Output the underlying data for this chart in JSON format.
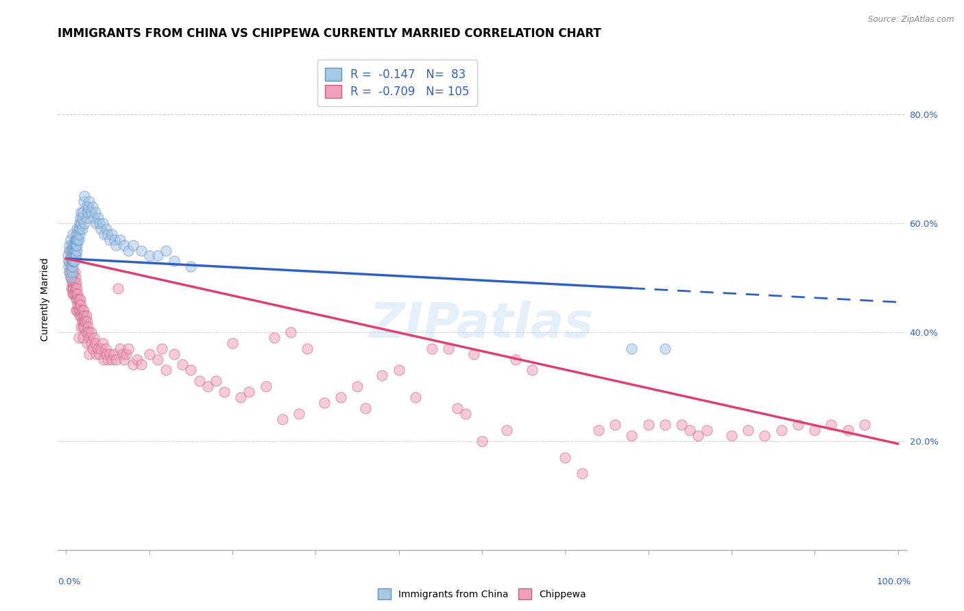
{
  "title": "IMMIGRANTS FROM CHINA VS CHIPPEWA CURRENTLY MARRIED CORRELATION CHART",
  "source": "Source: ZipAtlas.com",
  "ylabel": "Currently Married",
  "y_axis_ticks_right": [
    "80.0%",
    "60.0%",
    "40.0%",
    "20.0%"
  ],
  "y_axis_ticks_right_vals": [
    0.8,
    0.6,
    0.4,
    0.2
  ],
  "color_blue": "#A8C8E8",
  "color_pink": "#F0A0B8",
  "color_blue_line": "#3060C0",
  "color_pink_line": "#E04070",
  "color_blue_dark": "#6090C0",
  "color_pink_dark": "#C06080",
  "watermark": "ZIPatlas",
  "blue_scatter": [
    [
      0.002,
      0.54
    ],
    [
      0.003,
      0.52
    ],
    [
      0.003,
      0.53
    ],
    [
      0.004,
      0.56
    ],
    [
      0.004,
      0.51
    ],
    [
      0.005,
      0.55
    ],
    [
      0.005,
      0.5
    ],
    [
      0.005,
      0.57
    ],
    [
      0.006,
      0.54
    ],
    [
      0.006,
      0.53
    ],
    [
      0.006,
      0.52
    ],
    [
      0.007,
      0.55
    ],
    [
      0.007,
      0.53
    ],
    [
      0.007,
      0.51
    ],
    [
      0.007,
      0.56
    ],
    [
      0.008,
      0.54
    ],
    [
      0.008,
      0.52
    ],
    [
      0.008,
      0.58
    ],
    [
      0.008,
      0.53
    ],
    [
      0.009,
      0.55
    ],
    [
      0.009,
      0.53
    ],
    [
      0.009,
      0.56
    ],
    [
      0.009,
      0.54
    ],
    [
      0.01,
      0.56
    ],
    [
      0.01,
      0.54
    ],
    [
      0.01,
      0.55
    ],
    [
      0.01,
      0.53
    ],
    [
      0.011,
      0.57
    ],
    [
      0.011,
      0.55
    ],
    [
      0.011,
      0.54
    ],
    [
      0.011,
      0.56
    ],
    [
      0.012,
      0.58
    ],
    [
      0.012,
      0.56
    ],
    [
      0.012,
      0.54
    ],
    [
      0.012,
      0.57
    ],
    [
      0.013,
      0.59
    ],
    [
      0.013,
      0.57
    ],
    [
      0.013,
      0.55
    ],
    [
      0.013,
      0.56
    ],
    [
      0.014,
      0.58
    ],
    [
      0.014,
      0.57
    ],
    [
      0.015,
      0.59
    ],
    [
      0.015,
      0.57
    ],
    [
      0.016,
      0.6
    ],
    [
      0.016,
      0.58
    ],
    [
      0.017,
      0.61
    ],
    [
      0.017,
      0.59
    ],
    [
      0.018,
      0.62
    ],
    [
      0.018,
      0.6
    ],
    [
      0.019,
      0.61
    ],
    [
      0.019,
      0.59
    ],
    [
      0.02,
      0.62
    ],
    [
      0.021,
      0.64
    ],
    [
      0.022,
      0.65
    ],
    [
      0.022,
      0.6
    ],
    [
      0.024,
      0.63
    ],
    [
      0.025,
      0.61
    ],
    [
      0.026,
      0.62
    ],
    [
      0.027,
      0.63
    ],
    [
      0.028,
      0.64
    ],
    [
      0.03,
      0.62
    ],
    [
      0.032,
      0.63
    ],
    [
      0.033,
      0.61
    ],
    [
      0.035,
      0.62
    ],
    [
      0.036,
      0.6
    ],
    [
      0.038,
      0.61
    ],
    [
      0.04,
      0.6
    ],
    [
      0.042,
      0.59
    ],
    [
      0.044,
      0.6
    ],
    [
      0.046,
      0.58
    ],
    [
      0.048,
      0.59
    ],
    [
      0.05,
      0.58
    ],
    [
      0.052,
      0.57
    ],
    [
      0.055,
      0.58
    ],
    [
      0.058,
      0.57
    ],
    [
      0.06,
      0.56
    ],
    [
      0.065,
      0.57
    ],
    [
      0.07,
      0.56
    ],
    [
      0.075,
      0.55
    ],
    [
      0.08,
      0.56
    ],
    [
      0.09,
      0.55
    ],
    [
      0.1,
      0.54
    ],
    [
      0.11,
      0.54
    ],
    [
      0.12,
      0.55
    ],
    [
      0.13,
      0.53
    ],
    [
      0.15,
      0.52
    ],
    [
      0.68,
      0.37
    ],
    [
      0.72,
      0.37
    ]
  ],
  "pink_scatter": [
    [
      0.003,
      0.53
    ],
    [
      0.004,
      0.51
    ],
    [
      0.004,
      0.55
    ],
    [
      0.005,
      0.5
    ],
    [
      0.005,
      0.52
    ],
    [
      0.006,
      0.48
    ],
    [
      0.006,
      0.51
    ],
    [
      0.007,
      0.5
    ],
    [
      0.007,
      0.49
    ],
    [
      0.007,
      0.53
    ],
    [
      0.008,
      0.49
    ],
    [
      0.008,
      0.51
    ],
    [
      0.008,
      0.48
    ],
    [
      0.008,
      0.47
    ],
    [
      0.009,
      0.5
    ],
    [
      0.009,
      0.48
    ],
    [
      0.009,
      0.47
    ],
    [
      0.01,
      0.51
    ],
    [
      0.01,
      0.49
    ],
    [
      0.01,
      0.47
    ],
    [
      0.011,
      0.5
    ],
    [
      0.011,
      0.48
    ],
    [
      0.012,
      0.49
    ],
    [
      0.012,
      0.47
    ],
    [
      0.012,
      0.46
    ],
    [
      0.012,
      0.44
    ],
    [
      0.013,
      0.48
    ],
    [
      0.013,
      0.46
    ],
    [
      0.013,
      0.44
    ],
    [
      0.014,
      0.47
    ],
    [
      0.014,
      0.45
    ],
    [
      0.015,
      0.46
    ],
    [
      0.015,
      0.44
    ],
    [
      0.015,
      0.39
    ],
    [
      0.016,
      0.45
    ],
    [
      0.016,
      0.43
    ],
    [
      0.017,
      0.46
    ],
    [
      0.017,
      0.44
    ],
    [
      0.018,
      0.45
    ],
    [
      0.018,
      0.43
    ],
    [
      0.018,
      0.41
    ],
    [
      0.019,
      0.44
    ],
    [
      0.019,
      0.42
    ],
    [
      0.02,
      0.43
    ],
    [
      0.02,
      0.41
    ],
    [
      0.02,
      0.39
    ],
    [
      0.021,
      0.44
    ],
    [
      0.021,
      0.42
    ],
    [
      0.022,
      0.43
    ],
    [
      0.022,
      0.41
    ],
    [
      0.023,
      0.42
    ],
    [
      0.024,
      0.43
    ],
    [
      0.024,
      0.4
    ],
    [
      0.025,
      0.42
    ],
    [
      0.025,
      0.38
    ],
    [
      0.026,
      0.41
    ],
    [
      0.027,
      0.4
    ],
    [
      0.028,
      0.39
    ],
    [
      0.028,
      0.36
    ],
    [
      0.03,
      0.4
    ],
    [
      0.03,
      0.38
    ],
    [
      0.032,
      0.37
    ],
    [
      0.033,
      0.39
    ],
    [
      0.035,
      0.38
    ],
    [
      0.036,
      0.36
    ],
    [
      0.038,
      0.37
    ],
    [
      0.04,
      0.36
    ],
    [
      0.042,
      0.37
    ],
    [
      0.044,
      0.38
    ],
    [
      0.045,
      0.35
    ],
    [
      0.047,
      0.37
    ],
    [
      0.048,
      0.36
    ],
    [
      0.05,
      0.35
    ],
    [
      0.052,
      0.36
    ],
    [
      0.055,
      0.35
    ],
    [
      0.057,
      0.36
    ],
    [
      0.06,
      0.35
    ],
    [
      0.062,
      0.48
    ],
    [
      0.065,
      0.37
    ],
    [
      0.068,
      0.36
    ],
    [
      0.07,
      0.35
    ],
    [
      0.072,
      0.36
    ],
    [
      0.075,
      0.37
    ],
    [
      0.08,
      0.34
    ],
    [
      0.085,
      0.35
    ],
    [
      0.09,
      0.34
    ],
    [
      0.1,
      0.36
    ],
    [
      0.11,
      0.35
    ],
    [
      0.115,
      0.37
    ],
    [
      0.12,
      0.33
    ],
    [
      0.13,
      0.36
    ],
    [
      0.14,
      0.34
    ],
    [
      0.15,
      0.33
    ],
    [
      0.16,
      0.31
    ],
    [
      0.17,
      0.3
    ],
    [
      0.18,
      0.31
    ],
    [
      0.19,
      0.29
    ],
    [
      0.2,
      0.38
    ],
    [
      0.21,
      0.28
    ],
    [
      0.22,
      0.29
    ],
    [
      0.24,
      0.3
    ],
    [
      0.25,
      0.39
    ],
    [
      0.26,
      0.24
    ],
    [
      0.27,
      0.4
    ],
    [
      0.28,
      0.25
    ],
    [
      0.29,
      0.37
    ],
    [
      0.31,
      0.27
    ],
    [
      0.33,
      0.28
    ],
    [
      0.35,
      0.3
    ],
    [
      0.36,
      0.26
    ],
    [
      0.38,
      0.32
    ],
    [
      0.4,
      0.33
    ],
    [
      0.42,
      0.28
    ],
    [
      0.44,
      0.37
    ],
    [
      0.46,
      0.37
    ],
    [
      0.47,
      0.26
    ],
    [
      0.48,
      0.25
    ],
    [
      0.49,
      0.36
    ],
    [
      0.5,
      0.2
    ],
    [
      0.53,
      0.22
    ],
    [
      0.54,
      0.35
    ],
    [
      0.56,
      0.33
    ],
    [
      0.6,
      0.17
    ],
    [
      0.62,
      0.14
    ],
    [
      0.64,
      0.22
    ],
    [
      0.66,
      0.23
    ],
    [
      0.68,
      0.21
    ],
    [
      0.7,
      0.23
    ],
    [
      0.72,
      0.23
    ],
    [
      0.74,
      0.23
    ],
    [
      0.75,
      0.22
    ],
    [
      0.76,
      0.21
    ],
    [
      0.77,
      0.22
    ],
    [
      0.8,
      0.21
    ],
    [
      0.82,
      0.22
    ],
    [
      0.84,
      0.21
    ],
    [
      0.86,
      0.22
    ],
    [
      0.88,
      0.23
    ],
    [
      0.9,
      0.22
    ],
    [
      0.92,
      0.23
    ],
    [
      0.94,
      0.22
    ],
    [
      0.96,
      0.23
    ]
  ],
  "blue_line_y_start": 0.535,
  "blue_line_y_end": 0.455,
  "blue_line_solid_end_x": 0.68,
  "pink_line_x_start": 0.0,
  "pink_line_x_end": 1.0,
  "pink_line_y_start": 0.535,
  "pink_line_y_end": 0.195,
  "xlim": [
    -0.01,
    1.01
  ],
  "ylim": [
    0.0,
    0.92
  ],
  "background_color": "#ffffff",
  "grid_color": "#cccccc",
  "title_fontsize": 12,
  "axis_label_fontsize": 10,
  "tick_fontsize": 9.5,
  "scatter_size": 120,
  "scatter_alpha": 0.55,
  "legend_fontsize": 12
}
